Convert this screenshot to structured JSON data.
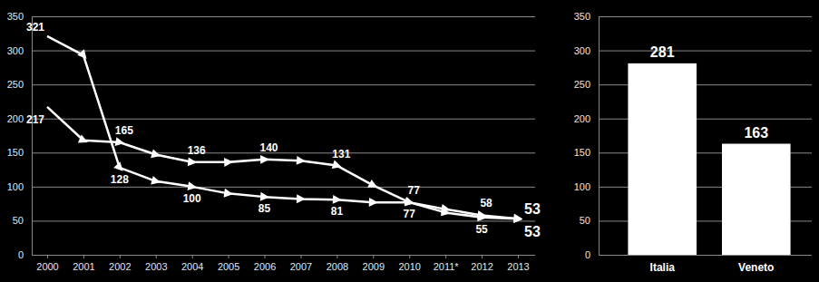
{
  "chart_data": [
    {
      "type": "line",
      "categories": [
        "2000",
        "2001",
        "2002",
        "2003",
        "2004",
        "2005",
        "2006",
        "2007",
        "2008",
        "2009",
        "2010",
        "2011*",
        "2012",
        "2013"
      ],
      "series": [
        {
          "color": "#ffffff",
          "marker": "triangle",
          "values": [
            321,
            293,
            128,
            108,
            100,
            90,
            85,
            82,
            81,
            77,
            77,
            62,
            55,
            53
          ],
          "value_labels": [
            "321",
            null,
            "128",
            null,
            "100",
            null,
            "85",
            null,
            "81",
            null,
            "77",
            null,
            "55",
            "53"
          ]
        },
        {
          "color": "#ffffff",
          "marker": "triangle",
          "values": [
            217,
            168,
            165,
            147,
            136,
            136,
            140,
            138,
            131,
            102,
            77,
            67,
            58,
            53
          ],
          "value_labels": [
            "217",
            null,
            "165",
            null,
            "136",
            null,
            "140",
            null,
            "131",
            null,
            "77",
            null,
            "58",
            "53"
          ]
        }
      ],
      "ylim": [
        0,
        350
      ],
      "yticks": [
        0,
        50,
        100,
        150,
        200,
        250,
        300,
        350
      ],
      "grid": true,
      "data_labels": true
    },
    {
      "type": "bar",
      "categories": [
        "Italia",
        "Veneto"
      ],
      "values": [
        281,
        163
      ],
      "color": "#ffffff",
      "ylim": [
        0,
        350
      ],
      "yticks": [
        0,
        50,
        100,
        150,
        200,
        250,
        300,
        350
      ],
      "grid": true,
      "data_labels": true
    }
  ]
}
